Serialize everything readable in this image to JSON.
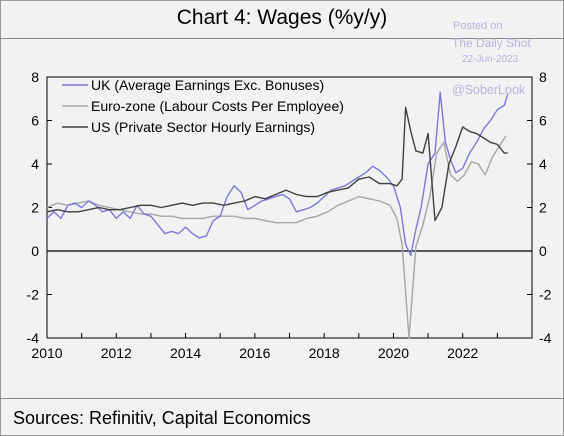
{
  "title": "Chart 4: Wages (%y/y)",
  "source": "Sources: Refinitiv, Capital Economics",
  "watermark": {
    "posted": "Posted on",
    "site": "The Daily Shot",
    "date": "22-Jun-2023",
    "handle": "@SoberLook"
  },
  "colors": {
    "uk": "#7b78dc",
    "ez": "#a6a6a6",
    "us": "#404040",
    "zero_line": "#000000",
    "grid": "#ffffff"
  },
  "chart_data": {
    "type": "line",
    "title": "Chart 4: Wages (%y/y)",
    "xlim": [
      2010,
      2024
    ],
    "ylim": [
      -4,
      8
    ],
    "x_ticks": [
      2010,
      2012,
      2014,
      2016,
      2018,
      2020,
      2022
    ],
    "y_ticks": [
      -4,
      -2,
      0,
      2,
      4,
      6,
      8
    ],
    "grid": false,
    "legend_position": "top-left",
    "series": [
      {
        "name": "UK (Average Earnings Exc. Bonuses)",
        "key": "uk",
        "x": [
          2010.0,
          2010.2,
          2010.4,
          2010.6,
          2010.8,
          2011.0,
          2011.2,
          2011.4,
          2011.6,
          2011.8,
          2012.0,
          2012.2,
          2012.4,
          2012.6,
          2012.8,
          2013.0,
          2013.2,
          2013.4,
          2013.6,
          2013.8,
          2014.0,
          2014.2,
          2014.4,
          2014.6,
          2014.8,
          2015.0,
          2015.2,
          2015.4,
          2015.6,
          2015.8,
          2016.0,
          2016.2,
          2016.4,
          2016.6,
          2016.8,
          2017.0,
          2017.2,
          2017.4,
          2017.6,
          2017.8,
          2018.0,
          2018.2,
          2018.4,
          2018.6,
          2018.8,
          2019.0,
          2019.2,
          2019.4,
          2019.6,
          2019.8,
          2020.0,
          2020.2,
          2020.35,
          2020.5,
          2020.65,
          2020.8,
          2021.0,
          2021.2,
          2021.35,
          2021.5,
          2021.65,
          2021.8,
          2022.0,
          2022.2,
          2022.4,
          2022.6,
          2022.8,
          2023.0,
          2023.2,
          2023.3
        ],
        "y": [
          1.5,
          1.8,
          1.5,
          2.1,
          2.2,
          2.0,
          2.3,
          2.1,
          1.8,
          1.9,
          1.5,
          1.8,
          1.5,
          2.1,
          1.7,
          1.6,
          1.2,
          0.8,
          0.9,
          0.8,
          1.1,
          0.8,
          0.6,
          0.7,
          1.4,
          1.6,
          2.5,
          3.0,
          2.7,
          1.9,
          2.1,
          2.3,
          2.4,
          2.5,
          2.6,
          2.4,
          1.8,
          1.9,
          2.0,
          2.2,
          2.5,
          2.8,
          2.9,
          3.0,
          3.2,
          3.4,
          3.6,
          3.9,
          3.7,
          3.4,
          3.0,
          2.0,
          0.3,
          -0.2,
          1.0,
          2.0,
          4.0,
          4.5,
          7.3,
          5.0,
          4.2,
          3.6,
          3.8,
          4.5,
          5.0,
          5.6,
          6.0,
          6.5,
          6.7,
          7.2
        ]
      },
      {
        "name": "Euro-zone (Labour Costs Per Employee)",
        "key": "ez",
        "x": [
          2010.0,
          2010.3,
          2010.6,
          2010.9,
          2011.2,
          2011.5,
          2011.8,
          2012.1,
          2012.4,
          2012.7,
          2013.0,
          2013.3,
          2013.6,
          2013.9,
          2014.2,
          2014.5,
          2014.8,
          2015.1,
          2015.4,
          2015.7,
          2016.0,
          2016.3,
          2016.6,
          2016.9,
          2017.2,
          2017.5,
          2017.8,
          2018.1,
          2018.4,
          2018.7,
          2019.0,
          2019.3,
          2019.6,
          2019.9,
          2020.1,
          2020.25,
          2020.45,
          2020.65,
          2020.85,
          2021.05,
          2021.25,
          2021.45,
          2021.65,
          2021.85,
          2022.05,
          2022.25,
          2022.45,
          2022.65,
          2022.85,
          2023.05,
          2023.25
        ],
        "y": [
          2.0,
          2.2,
          2.1,
          2.2,
          2.3,
          2.1,
          2.0,
          1.9,
          1.8,
          1.7,
          1.7,
          1.6,
          1.6,
          1.5,
          1.5,
          1.5,
          1.6,
          1.6,
          1.6,
          1.5,
          1.5,
          1.4,
          1.3,
          1.3,
          1.3,
          1.5,
          1.6,
          1.8,
          2.1,
          2.3,
          2.5,
          2.4,
          2.3,
          2.1,
          1.5,
          0.3,
          -4.0,
          0.2,
          1.2,
          2.5,
          4.5,
          5.0,
          3.5,
          3.2,
          3.5,
          4.1,
          4.0,
          3.5,
          4.3,
          4.8,
          5.3
        ]
      },
      {
        "name": "US (Private Sector Hourly Earnings)",
        "key": "us",
        "x": [
          2010.0,
          2010.3,
          2010.6,
          2010.9,
          2011.2,
          2011.5,
          2011.8,
          2012.1,
          2012.4,
          2012.7,
          2013.0,
          2013.3,
          2013.6,
          2013.9,
          2014.2,
          2014.5,
          2014.8,
          2015.1,
          2015.4,
          2015.7,
          2016.0,
          2016.3,
          2016.6,
          2016.9,
          2017.2,
          2017.5,
          2017.8,
          2018.1,
          2018.4,
          2018.7,
          2019.0,
          2019.3,
          2019.6,
          2019.9,
          2020.1,
          2020.25,
          2020.35,
          2020.5,
          2020.65,
          2020.85,
          2021.0,
          2021.2,
          2021.4,
          2021.6,
          2021.8,
          2022.0,
          2022.2,
          2022.4,
          2022.6,
          2022.8,
          2023.0,
          2023.2,
          2023.3
        ],
        "y": [
          1.8,
          1.9,
          1.8,
          1.8,
          1.9,
          2.0,
          1.9,
          1.9,
          2.0,
          2.1,
          2.1,
          2.0,
          2.1,
          2.2,
          2.1,
          2.2,
          2.2,
          2.1,
          2.2,
          2.3,
          2.5,
          2.4,
          2.6,
          2.8,
          2.6,
          2.5,
          2.5,
          2.7,
          2.8,
          2.9,
          3.3,
          3.4,
          3.1,
          3.1,
          3.0,
          3.3,
          6.6,
          5.5,
          4.6,
          4.5,
          5.4,
          1.4,
          2.0,
          4.0,
          4.8,
          5.7,
          5.5,
          5.4,
          5.2,
          5.0,
          4.9,
          4.5,
          4.5
        ]
      }
    ]
  }
}
